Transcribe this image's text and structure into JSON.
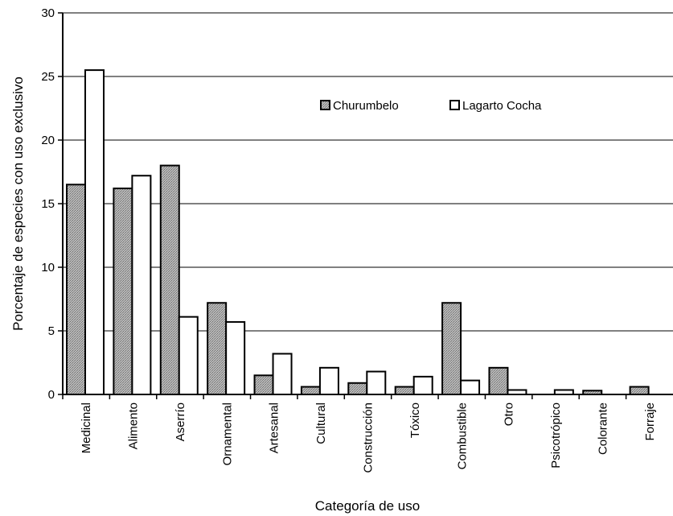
{
  "chart_data": {
    "type": "bar",
    "title": "",
    "xlabel": "Categoría de uso",
    "ylabel": "Porcentaje de especies con uso exclusivo",
    "ylim": [
      0,
      30
    ],
    "yticks": [
      0,
      5,
      10,
      15,
      20,
      25,
      30
    ],
    "grid": "horizontal",
    "legend_position": "top-right",
    "categories": [
      "Medicinal",
      "Alimento",
      "Aserrío",
      "Ornamental",
      "Artesanal",
      "Cultural",
      "Construcción",
      "Tóxico",
      "Combustible",
      "Otro",
      "Psicotrópico",
      "Colorante",
      "Forraje"
    ],
    "series": [
      {
        "name": "Churumbelo",
        "fill": "stippled-gray",
        "values": [
          16.5,
          16.2,
          18.0,
          7.2,
          1.5,
          0.6,
          0.9,
          0.6,
          7.2,
          2.1,
          0,
          0.3,
          0.6
        ]
      },
      {
        "name": "Lagarto Cocha",
        "fill": "white",
        "values": [
          25.5,
          17.2,
          6.1,
          5.7,
          3.2,
          2.1,
          1.8,
          1.4,
          1.1,
          0.35,
          0.35,
          0,
          0
        ]
      }
    ]
  }
}
